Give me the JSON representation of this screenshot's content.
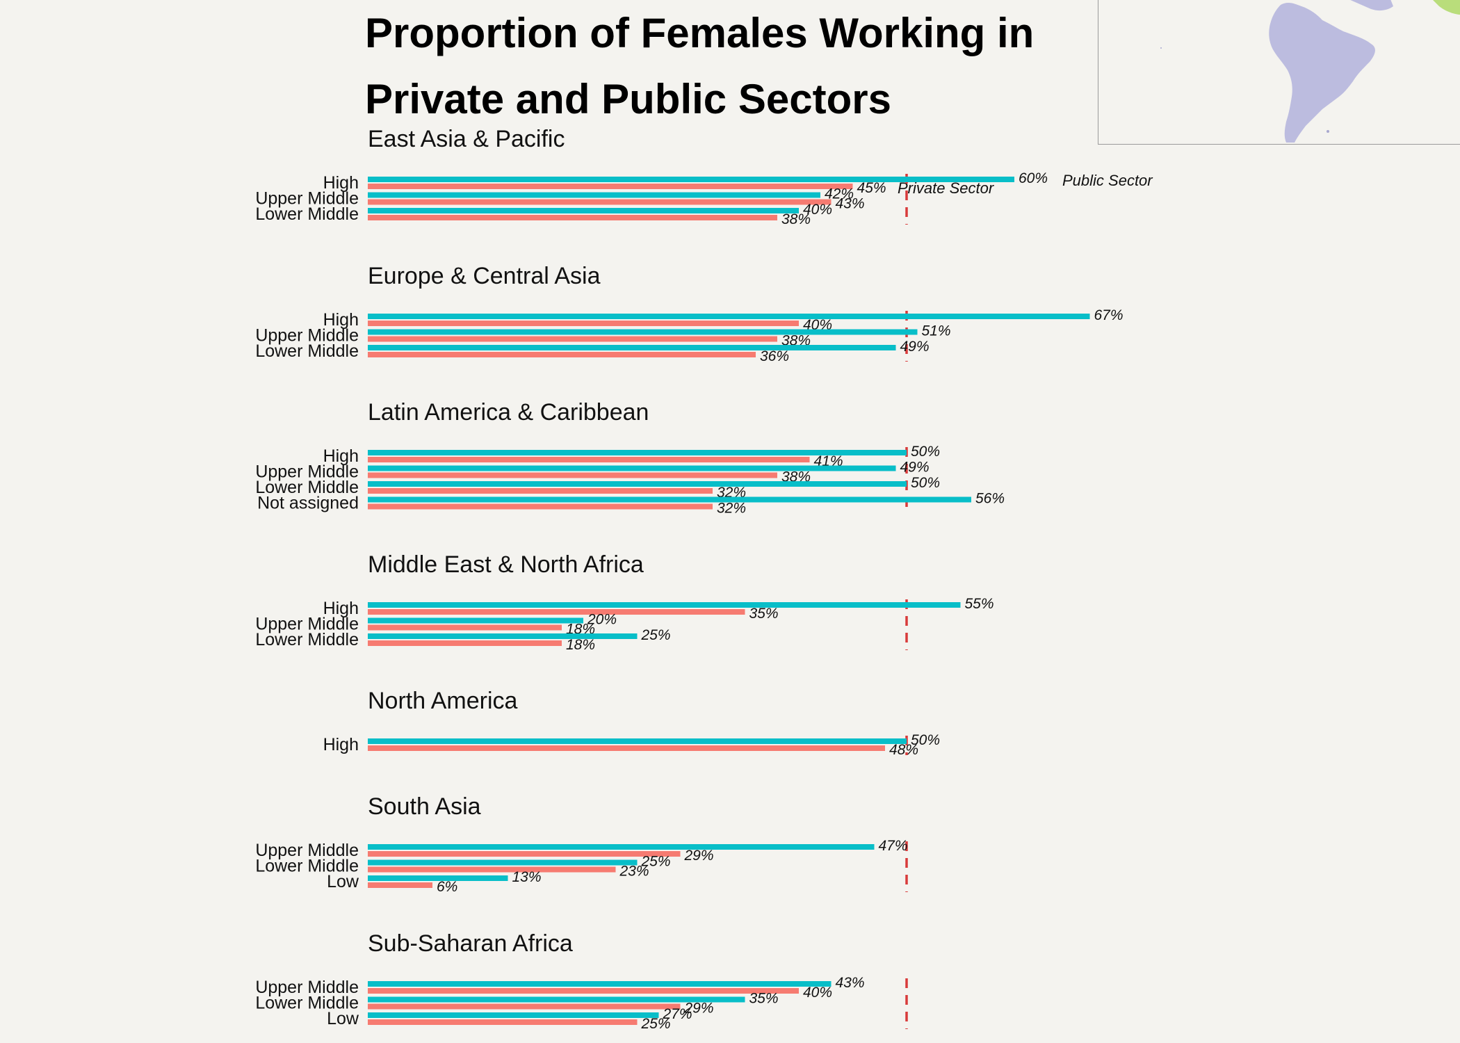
{
  "chart_data": {
    "type": "bar",
    "title": "Proportion of Females Working in Private and Public Sectors",
    "legend": [
      {
        "name": "Public Sector",
        "color": "#08bec8"
      },
      {
        "name": "Private Sector",
        "color": "#f67b71"
      }
    ],
    "reference_line": {
      "value": 50,
      "color": "#d83a3a",
      "style": "dashed"
    },
    "value_suffix": "%",
    "xlim": [
      0,
      70
    ],
    "panels": [
      {
        "region": "East Asia & Pacific",
        "rows": [
          {
            "label": "High",
            "public": 60,
            "private": 45
          },
          {
            "label": "Upper Middle",
            "public": 42,
            "private": 43
          },
          {
            "label": "Lower Middle",
            "public": 40,
            "private": 38
          }
        ]
      },
      {
        "region": "Europe & Central Asia",
        "rows": [
          {
            "label": "High",
            "public": 67,
            "private": 40
          },
          {
            "label": "Upper Middle",
            "public": 51,
            "private": 38
          },
          {
            "label": "Lower Middle",
            "public": 49,
            "private": 36
          }
        ]
      },
      {
        "region": "Latin America & Caribbean",
        "rows": [
          {
            "label": "High",
            "public": 50,
            "private": 41
          },
          {
            "label": "Upper Middle",
            "public": 49,
            "private": 38
          },
          {
            "label": "Lower Middle",
            "public": 50,
            "private": 32
          },
          {
            "label": "Not assigned",
            "public": 56,
            "private": 32
          }
        ]
      },
      {
        "region": "Middle East & North Africa",
        "rows": [
          {
            "label": "High",
            "public": 55,
            "private": 35
          },
          {
            "label": "Upper Middle",
            "public": 20,
            "private": 18
          },
          {
            "label": "Lower Middle",
            "public": 25,
            "private": 18
          }
        ]
      },
      {
        "region": "North America",
        "rows": [
          {
            "label": "High",
            "public": 50,
            "private": 48
          }
        ]
      },
      {
        "region": "South Asia",
        "rows": [
          {
            "label": "Upper Middle",
            "public": 47,
            "private": 29
          },
          {
            "label": "Lower Middle",
            "public": 25,
            "private": 23
          },
          {
            "label": "Low",
            "public": 13,
            "private": 6
          }
        ]
      },
      {
        "region": "Sub-Saharan Africa",
        "rows": [
          {
            "label": "Upper Middle",
            "public": 43,
            "private": 40
          },
          {
            "label": "Lower Middle",
            "public": 35,
            "private": 29
          },
          {
            "label": "Low",
            "public": 27,
            "private": 25
          }
        ]
      }
    ]
  },
  "map": {
    "land_color": "#bcbcdf",
    "accent_color": "#b9dd7b"
  }
}
